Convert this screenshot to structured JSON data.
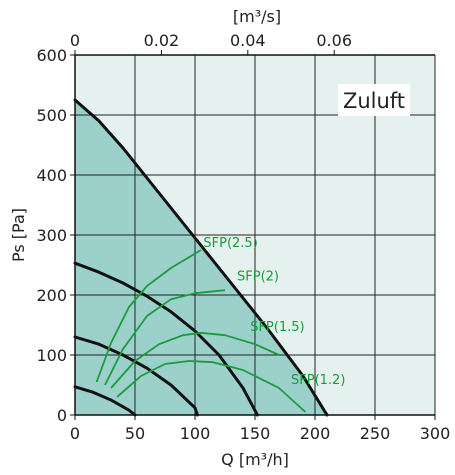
{
  "chart_data": {
    "type": "line",
    "label_box": "Zuluft",
    "xlabel_top": "[m³/s]",
    "xlabel_bottom": "Q [m³/h]",
    "ylabel": "Ps [Pa]",
    "xlim": [
      0,
      300
    ],
    "ylim": [
      0,
      600
    ],
    "x_ticks": [
      "0",
      "50",
      "100",
      "150",
      "200",
      "250",
      "300"
    ],
    "y_ticks": [
      "0",
      "100",
      "200",
      "300",
      "400",
      "500",
      "600"
    ],
    "x_top_ticks": [
      "0",
      "0.02",
      "0.04",
      "0.06"
    ],
    "grid": true,
    "colors": {
      "background": "#e4f1ef",
      "fill": "#9bd1ca",
      "fan_curve": "#111111",
      "sfp_curve": "#1a9c3c",
      "grid": "#222222"
    },
    "fan_curves": [
      {
        "x": [
          0,
          20,
          40,
          60,
          80,
          100,
          130,
          160,
          190,
          210
        ],
        "y": [
          525,
          490,
          445,
          395,
          345,
          295,
          220,
          145,
          65,
          0
        ]
      },
      {
        "x": [
          0,
          20,
          40,
          60,
          80,
          100,
          120,
          140,
          152
        ],
        "y": [
          253,
          238,
          220,
          198,
          172,
          140,
          100,
          45,
          0
        ]
      },
      {
        "x": [
          0,
          20,
          40,
          60,
          80,
          100,
          102
        ],
        "y": [
          130,
          118,
          100,
          78,
          50,
          12,
          0
        ]
      },
      {
        "x": [
          0,
          15,
          30,
          45,
          50
        ],
        "y": [
          47,
          38,
          25,
          8,
          0
        ]
      }
    ],
    "sfp_curves": [
      {
        "name": "SFP(2.5)",
        "x": [
          18,
          30,
          45,
          60,
          80,
          105
        ],
        "y": [
          55,
          120,
          180,
          215,
          245,
          275
        ]
      },
      {
        "name": "SFP(2)",
        "x": [
          25,
          40,
          60,
          80,
          100,
          125
        ],
        "y": [
          50,
          110,
          165,
          193,
          203,
          208
        ]
      },
      {
        "name": "SFP(1.5)",
        "x": [
          30,
          50,
          70,
          90,
          105,
          125,
          150,
          170
        ],
        "y": [
          45,
          90,
          118,
          133,
          137,
          133,
          118,
          100
        ]
      },
      {
        "name": "SFP(1.2)",
        "x": [
          35,
          55,
          75,
          95,
          115,
          140,
          170,
          192
        ],
        "y": [
          30,
          65,
          85,
          90,
          88,
          75,
          45,
          5
        ]
      }
    ],
    "sfp_label_positions": [
      {
        "name": "SFP(2.5)",
        "x": 107,
        "y": 280
      },
      {
        "name": "SFP(2)",
        "x": 135,
        "y": 224
      },
      {
        "name": "SFP(1.5)",
        "x": 146,
        "y": 140
      },
      {
        "name": "SFP(1.2)",
        "x": 180,
        "y": 52
      }
    ]
  }
}
